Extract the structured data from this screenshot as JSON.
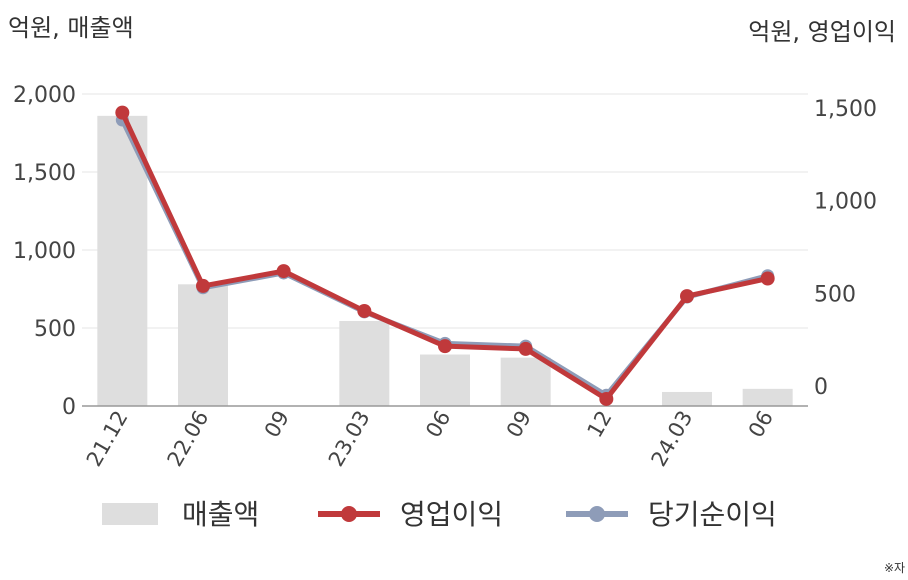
{
  "chart_data": {
    "type": "bar",
    "left_axis_unit": "억원, 매출액",
    "right_axis_unit": "억원, 영업이익",
    "categories": [
      "21.12",
      "22.06",
      "09",
      "23.03",
      "06",
      "09",
      "12",
      "24.03",
      "06"
    ],
    "series": [
      {
        "name": "매출액",
        "type": "bar",
        "axis": "left",
        "color": "#dedede",
        "values": [
          1860,
          780,
          null,
          545,
          330,
          310,
          null,
          90,
          110
        ]
      },
      {
        "name": "영업이익",
        "type": "line",
        "axis": "right",
        "color": "#c0393b",
        "values": [
          1475,
          540,
          620,
          405,
          215,
          200,
          -70,
          485,
          580
        ]
      },
      {
        "name": "당기순이익",
        "type": "line",
        "axis": "right",
        "color": "#8e9cb8",
        "values": [
          1435,
          530,
          610,
          400,
          230,
          215,
          -50,
          480,
          595
        ]
      }
    ],
    "left_axis": {
      "ylim": [
        0,
        2000
      ],
      "ticks": [
        "0",
        "500",
        "1,000",
        "1,500",
        "2,000"
      ],
      "tick_values": [
        0,
        500,
        1000,
        1500,
        2000
      ]
    },
    "right_axis": {
      "ylim": [
        -100,
        1600
      ],
      "ticks": [
        "0",
        "500",
        "1,000",
        "1,500"
      ],
      "tick_values": [
        0,
        500,
        1000,
        1500
      ]
    },
    "grid": true,
    "legend_position": "bottom",
    "footnote": "※자"
  }
}
